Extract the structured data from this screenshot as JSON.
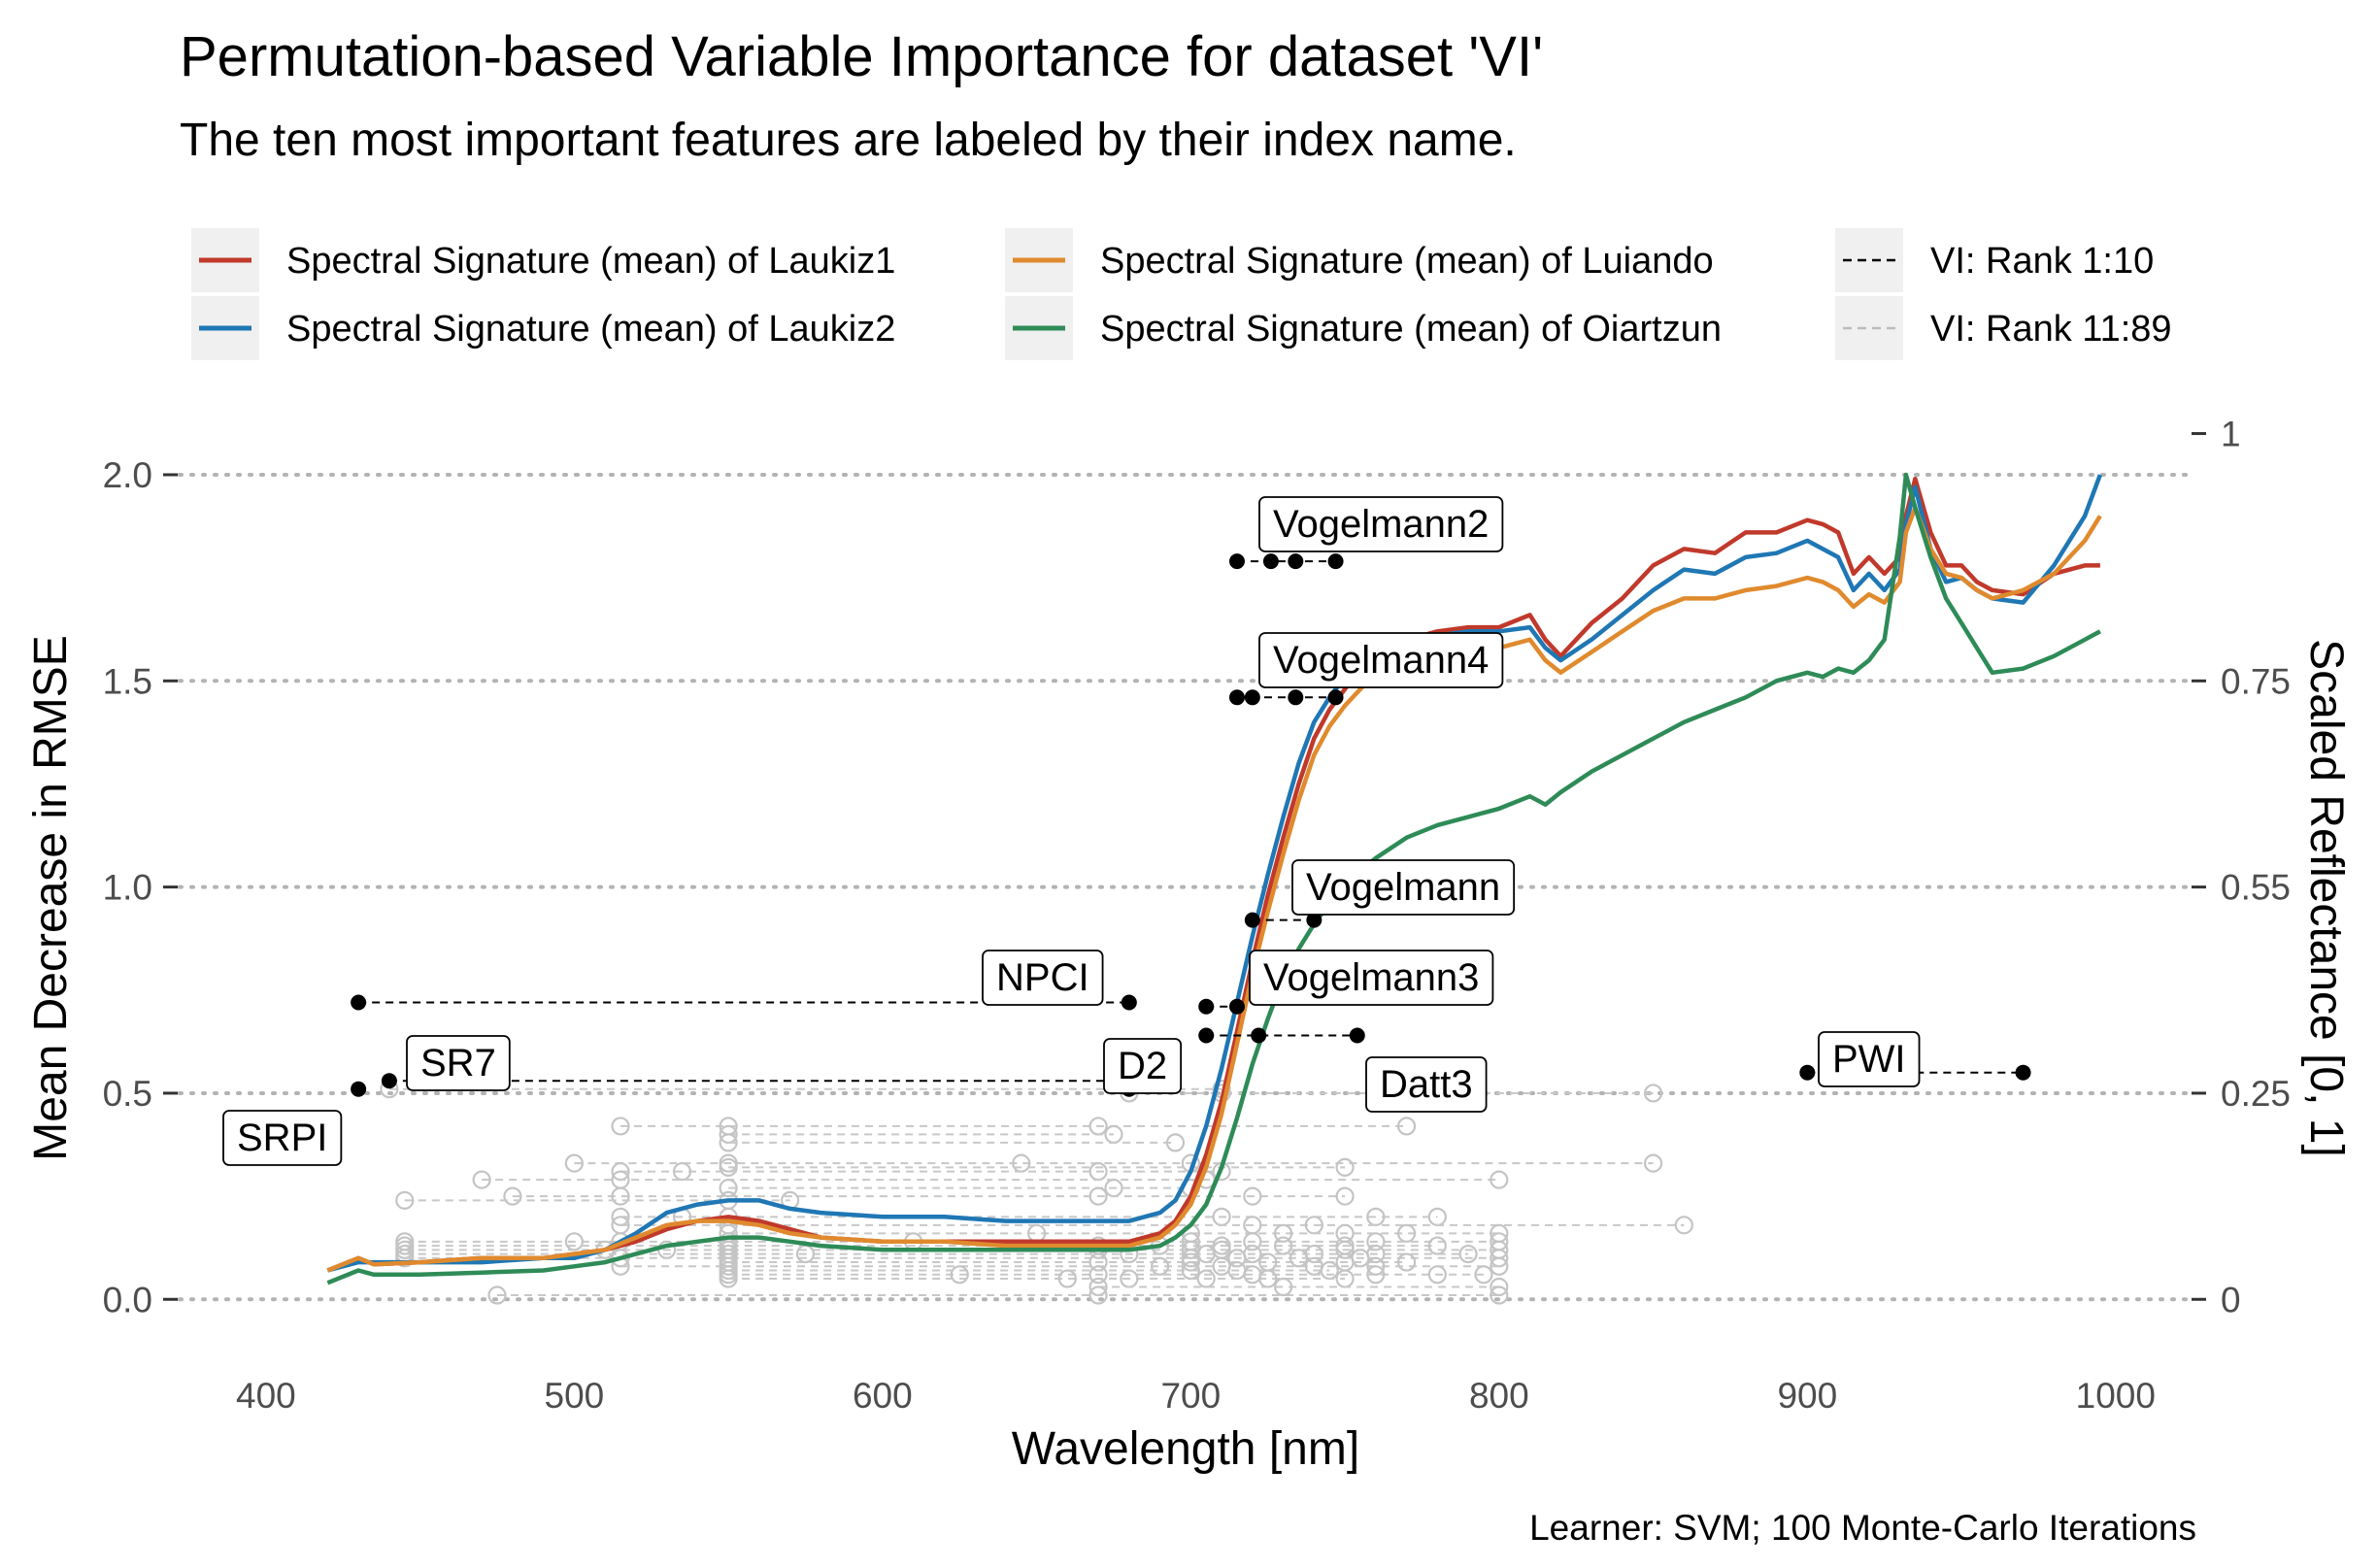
{
  "chart_data": {
    "type": "line",
    "title": "Permutation-based Variable Importance for dataset 'VI'",
    "subtitle": "The ten most important features are labeled by their index name.",
    "caption": "Learner: SVM; 100 Monte-Carlo Iterations",
    "xlabel": "Wavelength [nm]",
    "ylabel": "Mean Decrease in RMSE",
    "y2label": "Scaled Reflectance [0, 1]",
    "xlim": [
      372,
      1024
    ],
    "ylim": [
      -0.07,
      2.08
    ],
    "xticks": [
      400,
      500,
      600,
      700,
      800,
      900,
      1000
    ],
    "xtick_labels": [
      "400",
      "500",
      "600",
      "700",
      "800",
      "900",
      "1000"
    ],
    "yticks": [
      0.0,
      0.5,
      1.0,
      1.5,
      2.0
    ],
    "ytick_labels": [
      "0.0",
      "0.5",
      "1.0",
      "1.5",
      "2.0"
    ],
    "y2ticks": [
      0,
      0.25,
      0.55,
      0.75,
      1
    ],
    "y2tick_labels": [
      "0",
      "0.25",
      "0.55",
      "0.75",
      "1"
    ],
    "y2tick_positions": [
      0.0,
      0.5,
      1.0,
      1.5,
      2.0999
    ],
    "grid": "dotted horizontal at y ticks",
    "legend_position": "top",
    "legend": [
      {
        "label": "Spectral Signature (mean) of Laukiz1",
        "color": "#c0392b",
        "style": "solid"
      },
      {
        "label": "Spectral Signature (mean) of Laukiz2",
        "color": "#1f77b4",
        "style": "solid"
      },
      {
        "label": "Spectral Signature (mean) of Luiando",
        "color": "#e08a2e",
        "style": "solid"
      },
      {
        "label": "Spectral Signature (mean) of Oiartzun",
        "color": "#2e8b57",
        "style": "solid"
      },
      {
        "label": "VI: Rank 1:10",
        "color": "#000000",
        "style": "dashed"
      },
      {
        "label": "VI: Rank 11:89",
        "color": "#bbbbbb",
        "style": "dashed"
      }
    ],
    "series": [
      {
        "name": "Spectral Signature (mean) of Laukiz1",
        "color": "#c0392b",
        "x": [
          420,
          430,
          435,
          450,
          470,
          490,
          500,
          510,
          520,
          530,
          540,
          550,
          560,
          570,
          580,
          600,
          620,
          640,
          660,
          680,
          690,
          695,
          700,
          705,
          710,
          715,
          720,
          725,
          730,
          735,
          740,
          745,
          750,
          755,
          760,
          770,
          780,
          790,
          800,
          810,
          815,
          820,
          830,
          840,
          850,
          860,
          870,
          880,
          890,
          900,
          905,
          910,
          915,
          920,
          925,
          930,
          932,
          935,
          940,
          945,
          950,
          955,
          960,
          970,
          980,
          990,
          995
        ],
        "y": [
          0.07,
          0.1,
          0.085,
          0.09,
          0.1,
          0.1,
          0.11,
          0.12,
          0.14,
          0.17,
          0.19,
          0.2,
          0.19,
          0.17,
          0.15,
          0.14,
          0.14,
          0.14,
          0.14,
          0.14,
          0.16,
          0.19,
          0.25,
          0.35,
          0.48,
          0.65,
          0.82,
          0.98,
          1.12,
          1.25,
          1.36,
          1.43,
          1.48,
          1.53,
          1.57,
          1.6,
          1.62,
          1.63,
          1.63,
          1.66,
          1.6,
          1.56,
          1.64,
          1.7,
          1.78,
          1.82,
          1.81,
          1.86,
          1.86,
          1.89,
          1.88,
          1.86,
          1.76,
          1.8,
          1.76,
          1.8,
          1.9,
          1.99,
          1.86,
          1.78,
          1.78,
          1.74,
          1.72,
          1.71,
          1.76,
          1.78,
          1.78
        ]
      },
      {
        "name": "Spectral Signature (mean) of Laukiz2",
        "color": "#1f77b4",
        "x": [
          420,
          430,
          435,
          450,
          470,
          490,
          500,
          510,
          520,
          530,
          540,
          550,
          560,
          570,
          580,
          600,
          620,
          640,
          660,
          680,
          690,
          695,
          700,
          705,
          710,
          715,
          720,
          725,
          730,
          735,
          740,
          745,
          750,
          755,
          760,
          770,
          780,
          790,
          800,
          810,
          815,
          820,
          830,
          840,
          850,
          860,
          870,
          880,
          890,
          900,
          905,
          910,
          915,
          920,
          925,
          930,
          932,
          935,
          940,
          945,
          950,
          955,
          960,
          970,
          980,
          990,
          995
        ],
        "y": [
          0.07,
          0.09,
          0.09,
          0.09,
          0.09,
          0.1,
          0.1,
          0.12,
          0.16,
          0.21,
          0.23,
          0.24,
          0.24,
          0.22,
          0.21,
          0.2,
          0.2,
          0.19,
          0.19,
          0.19,
          0.21,
          0.24,
          0.31,
          0.42,
          0.56,
          0.72,
          0.88,
          1.03,
          1.17,
          1.3,
          1.4,
          1.46,
          1.51,
          1.55,
          1.58,
          1.6,
          1.61,
          1.62,
          1.62,
          1.63,
          1.58,
          1.55,
          1.6,
          1.66,
          1.72,
          1.77,
          1.76,
          1.8,
          1.81,
          1.84,
          1.82,
          1.8,
          1.72,
          1.76,
          1.72,
          1.77,
          1.88,
          1.97,
          1.82,
          1.74,
          1.75,
          1.72,
          1.7,
          1.69,
          1.78,
          1.9,
          2.0
        ]
      },
      {
        "name": "Spectral Signature (mean) of Luiando",
        "color": "#e08a2e",
        "x": [
          420,
          430,
          435,
          450,
          470,
          490,
          500,
          510,
          520,
          530,
          540,
          550,
          560,
          570,
          580,
          600,
          620,
          640,
          660,
          680,
          690,
          695,
          700,
          705,
          710,
          715,
          720,
          725,
          730,
          735,
          740,
          745,
          750,
          755,
          760,
          770,
          780,
          790,
          800,
          810,
          815,
          820,
          830,
          840,
          850,
          860,
          870,
          880,
          890,
          900,
          905,
          910,
          915,
          920,
          925,
          930,
          932,
          935,
          940,
          945,
          950,
          955,
          960,
          970,
          980,
          990,
          995
        ],
        "y": [
          0.07,
          0.1,
          0.085,
          0.09,
          0.1,
          0.1,
          0.11,
          0.12,
          0.15,
          0.18,
          0.19,
          0.19,
          0.18,
          0.16,
          0.15,
          0.14,
          0.14,
          0.13,
          0.13,
          0.13,
          0.15,
          0.18,
          0.23,
          0.32,
          0.45,
          0.62,
          0.79,
          0.94,
          1.08,
          1.21,
          1.32,
          1.39,
          1.44,
          1.48,
          1.52,
          1.55,
          1.57,
          1.58,
          1.58,
          1.6,
          1.55,
          1.52,
          1.57,
          1.62,
          1.67,
          1.7,
          1.7,
          1.72,
          1.73,
          1.75,
          1.74,
          1.72,
          1.68,
          1.71,
          1.69,
          1.74,
          1.86,
          1.92,
          1.82,
          1.76,
          1.75,
          1.72,
          1.7,
          1.72,
          1.76,
          1.84,
          1.9
        ]
      },
      {
        "name": "Spectral Signature (mean) of Oiartzun",
        "color": "#2e8b57",
        "x": [
          420,
          430,
          435,
          450,
          470,
          490,
          500,
          510,
          520,
          530,
          540,
          550,
          560,
          570,
          580,
          600,
          620,
          640,
          660,
          680,
          690,
          695,
          700,
          705,
          710,
          715,
          720,
          725,
          730,
          735,
          740,
          745,
          750,
          755,
          760,
          770,
          780,
          790,
          800,
          810,
          815,
          820,
          830,
          840,
          850,
          860,
          870,
          880,
          890,
          900,
          905,
          910,
          915,
          920,
          925,
          930,
          932,
          935,
          940,
          945,
          950,
          955,
          960,
          970,
          980,
          990,
          995
        ],
        "y": [
          0.04,
          0.07,
          0.06,
          0.06,
          0.065,
          0.07,
          0.08,
          0.09,
          0.11,
          0.13,
          0.14,
          0.15,
          0.15,
          0.14,
          0.13,
          0.12,
          0.12,
          0.12,
          0.12,
          0.12,
          0.13,
          0.15,
          0.18,
          0.23,
          0.32,
          0.44,
          0.57,
          0.68,
          0.78,
          0.85,
          0.91,
          0.96,
          1.0,
          1.04,
          1.07,
          1.12,
          1.15,
          1.17,
          1.19,
          1.22,
          1.2,
          1.23,
          1.28,
          1.32,
          1.36,
          1.4,
          1.43,
          1.46,
          1.5,
          1.52,
          1.51,
          1.53,
          1.52,
          1.55,
          1.6,
          1.85,
          2.0,
          1.92,
          1.8,
          1.7,
          1.64,
          1.58,
          1.52,
          1.53,
          1.56,
          1.6,
          1.62
        ]
      }
    ],
    "vi_top10": [
      {
        "label": "Vogelmann2",
        "y": 1.79,
        "points": [
          715,
          726,
          734,
          747
        ]
      },
      {
        "label": "Vogelmann4",
        "y": 1.46,
        "points": [
          715,
          720,
          734,
          747
        ]
      },
      {
        "label": "Vogelmann",
        "y": 0.92,
        "points": [
          720,
          740
        ]
      },
      {
        "label": "Vogelmann3",
        "y": 0.71,
        "points": [
          705,
          715
        ]
      },
      {
        "label": "NPCI",
        "y": 0.72,
        "points": [
          430,
          680
        ]
      },
      {
        "label": "D2",
        "y": 0.51,
        "points": [
          680
        ]
      },
      {
        "label": "SR7",
        "y": 0.53,
        "points": [
          440,
          680
        ]
      },
      {
        "label": "SRPI",
        "y": 0.51,
        "points": [
          430
        ]
      },
      {
        "label": "Datt3",
        "y": 0.64,
        "points": [
          705,
          722,
          754
        ]
      },
      {
        "label": "PWI",
        "y": 0.55,
        "points": [
          900,
          970
        ]
      }
    ],
    "vi_rest": [
      {
        "y": 0.51,
        "points": [
          440,
          710
        ]
      },
      {
        "y": 0.5,
        "points": [
          680,
          710,
          850
        ]
      },
      {
        "y": 0.42,
        "points": [
          515,
          550,
          670,
          770
        ]
      },
      {
        "y": 0.4,
        "points": [
          550,
          675
        ]
      },
      {
        "y": 0.38,
        "points": [
          550,
          695
        ]
      },
      {
        "y": 0.33,
        "points": [
          500,
          550,
          645,
          700,
          850
        ]
      },
      {
        "y": 0.32,
        "points": [
          550,
          750
        ]
      },
      {
        "y": 0.31,
        "points": [
          515,
          535,
          670,
          710
        ]
      },
      {
        "y": 0.29,
        "points": [
          470,
          515,
          705,
          800
        ]
      },
      {
        "y": 0.27,
        "points": [
          550,
          675,
          700
        ]
      },
      {
        "y": 0.25,
        "points": [
          480,
          515,
          670,
          720,
          750
        ]
      },
      {
        "y": 0.24,
        "points": [
          445,
          550,
          570
        ]
      },
      {
        "y": 0.2,
        "points": [
          515,
          535,
          550,
          710,
          760,
          780
        ]
      },
      {
        "y": 0.18,
        "points": [
          515,
          550,
          720,
          740,
          860
        ]
      },
      {
        "y": 0.16,
        "points": [
          550,
          650,
          700,
          730,
          750,
          770,
          800
        ]
      },
      {
        "y": 0.14,
        "points": [
          445,
          500,
          515,
          550,
          610,
          700,
          720,
          760,
          800
        ]
      },
      {
        "y": 0.13,
        "points": [
          445,
          550,
          670,
          690,
          710,
          730,
          750,
          780
        ]
      },
      {
        "y": 0.12,
        "points": [
          445,
          510,
          530,
          550,
          670,
          700,
          710,
          750,
          800
        ]
      },
      {
        "y": 0.11,
        "points": [
          445,
          550,
          575,
          680,
          705,
          720,
          740,
          760,
          790
        ]
      },
      {
        "y": 0.1,
        "points": [
          445,
          515,
          550,
          700,
          715,
          735,
          755,
          800
        ]
      },
      {
        "y": 0.09,
        "points": [
          550,
          670,
          700,
          725,
          750,
          770
        ]
      },
      {
        "y": 0.08,
        "points": [
          515,
          550,
          690,
          710,
          740,
          760,
          800
        ]
      },
      {
        "y": 0.07,
        "points": [
          550,
          700,
          715,
          745
        ]
      },
      {
        "y": 0.06,
        "points": [
          550,
          625,
          670,
          720,
          760,
          780,
          795
        ]
      },
      {
        "y": 0.05,
        "points": [
          550,
          660,
          680,
          705,
          725,
          750
        ]
      },
      {
        "y": 0.03,
        "points": [
          670,
          730,
          800
        ]
      },
      {
        "y": 0.01,
        "points": [
          475,
          670,
          800
        ]
      }
    ]
  }
}
